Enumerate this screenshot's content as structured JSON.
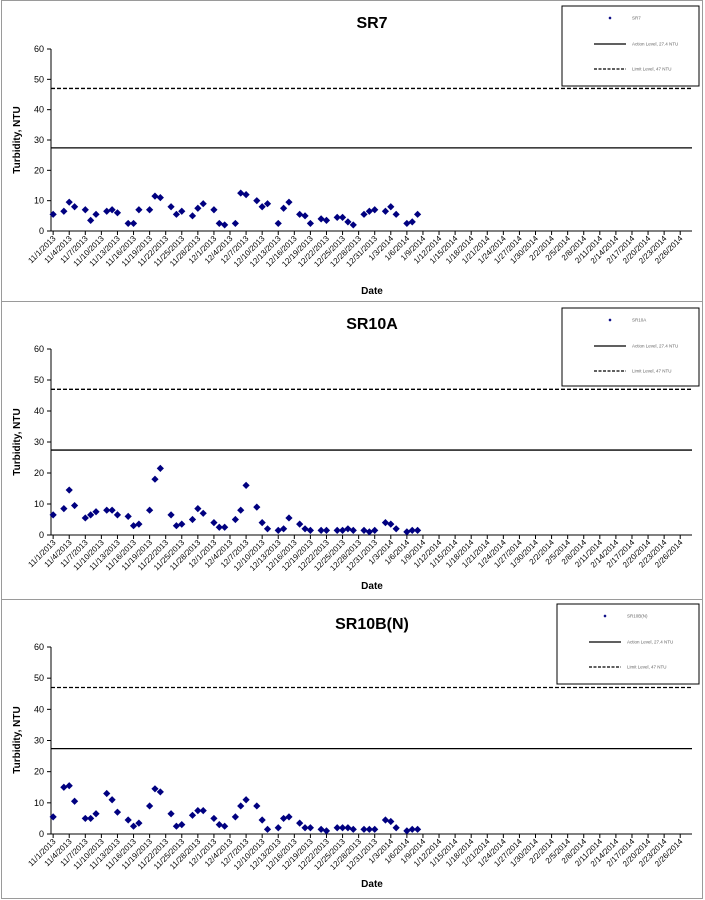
{
  "chart_data": [
    {
      "type": "scatter",
      "title": "SR7",
      "xlabel": "Date",
      "ylabel": "Turbidity, NTU",
      "ylim": [
        0,
        60
      ],
      "yticks": [
        0,
        10,
        20,
        30,
        40,
        50,
        60
      ],
      "grid": false,
      "legend_position": "top-right",
      "legend": {
        "marker_label": "SR7",
        "solid_label": "Action Level, 27.4 NTU",
        "dashed_label": "Limit Level, 47 NTU"
      },
      "reference_lines": [
        {
          "y": 27.4,
          "style": "solid"
        },
        {
          "y": 47,
          "style": "dashed"
        }
      ],
      "xticks": [
        "11/1/2013",
        "11/4/2013",
        "11/7/2013",
        "11/10/2013",
        "11/13/2013",
        "11/16/2013",
        "11/19/2013",
        "11/22/2013",
        "11/25/2013",
        "11/28/2013",
        "12/1/2013",
        "12/4/2013",
        "12/7/2013",
        "12/10/2013",
        "12/13/2013",
        "12/16/2013",
        "12/19/2013",
        "12/22/2013",
        "12/25/2013",
        "12/28/2013",
        "12/31/2013",
        "1/3/2014",
        "1/6/2014",
        "1/9/2014",
        "1/12/2014",
        "1/15/2014",
        "1/18/2014",
        "1/21/2014",
        "1/24/2014",
        "1/27/2014",
        "1/30/2014",
        "2/2/2014",
        "2/5/2014",
        "2/8/2014",
        "2/11/2014",
        "2/14/2014",
        "2/17/2014",
        "2/20/2014",
        "2/23/2014",
        "2/26/2014"
      ],
      "points": [
        [
          "11/1/2013",
          5.5
        ],
        [
          "11/3/2013",
          6.5
        ],
        [
          "11/4/2013",
          9.5
        ],
        [
          "11/5/2013",
          8
        ],
        [
          "11/7/2013",
          7
        ],
        [
          "11/8/2013",
          3.5
        ],
        [
          "11/9/2013",
          5.5
        ],
        [
          "11/11/2013",
          6.5
        ],
        [
          "11/12/2013",
          7
        ],
        [
          "11/13/2013",
          6
        ],
        [
          "11/15/2013",
          2.5
        ],
        [
          "11/16/2013",
          2.5
        ],
        [
          "11/17/2013",
          7
        ],
        [
          "11/19/2013",
          7
        ],
        [
          "11/20/2013",
          11.5
        ],
        [
          "11/21/2013",
          11
        ],
        [
          "11/23/2013",
          8
        ],
        [
          "11/24/2013",
          5.5
        ],
        [
          "11/25/2013",
          6.5
        ],
        [
          "11/27/2013",
          5
        ],
        [
          "11/28/2013",
          7.5
        ],
        [
          "11/29/2013",
          9
        ],
        [
          "12/1/2013",
          7
        ],
        [
          "12/2/2013",
          2.5
        ],
        [
          "12/3/2013",
          2
        ],
        [
          "12/5/2013",
          2.5
        ],
        [
          "12/6/2013",
          12.5
        ],
        [
          "12/7/2013",
          12
        ],
        [
          "12/9/2013",
          10
        ],
        [
          "12/10/2013",
          8
        ],
        [
          "12/11/2013",
          9
        ],
        [
          "12/13/2013",
          2.5
        ],
        [
          "12/14/2013",
          7.5
        ],
        [
          "12/15/2013",
          9.5
        ],
        [
          "12/17/2013",
          5.5
        ],
        [
          "12/18/2013",
          5
        ],
        [
          "12/19/2013",
          2.5
        ],
        [
          "12/21/2013",
          4
        ],
        [
          "12/22/2013",
          3.5
        ],
        [
          "12/24/2013",
          4.5
        ],
        [
          "12/25/2013",
          4.5
        ],
        [
          "12/26/2013",
          3
        ],
        [
          "12/27/2013",
          2
        ],
        [
          "12/29/2013",
          5.5
        ],
        [
          "12/30/2013",
          6.5
        ],
        [
          "12/31/2013",
          7
        ],
        [
          "1/2/2014",
          6.5
        ],
        [
          "1/3/2014",
          8
        ],
        [
          "1/4/2014",
          5.5
        ],
        [
          "1/6/2014",
          2.5
        ],
        [
          "1/7/2014",
          3
        ],
        [
          "1/8/2014",
          5.5
        ]
      ]
    },
    {
      "type": "scatter",
      "title": "SR10A",
      "xlabel": "Date",
      "ylabel": "Turbidity, NTU",
      "ylim": [
        0,
        60
      ],
      "yticks": [
        0,
        10,
        20,
        30,
        40,
        50,
        60
      ],
      "grid": false,
      "legend_position": "top-right",
      "legend": {
        "marker_label": "SR10A",
        "solid_label": "Action Level, 27.4 NTU",
        "dashed_label": "Limit Level, 47 NTU"
      },
      "reference_lines": [
        {
          "y": 27.4,
          "style": "solid"
        },
        {
          "y": 47,
          "style": "dashed"
        }
      ],
      "xticks": [
        "11/1/2013",
        "11/4/2013",
        "11/7/2013",
        "11/10/2013",
        "11/13/2013",
        "11/16/2013",
        "11/19/2013",
        "11/22/2013",
        "11/25/2013",
        "11/28/2013",
        "12/1/2013",
        "12/4/2013",
        "12/7/2013",
        "12/10/2013",
        "12/13/2013",
        "12/16/2013",
        "12/19/2013",
        "12/22/2013",
        "12/25/2013",
        "12/28/2013",
        "12/31/2013",
        "1/3/2014",
        "1/6/2014",
        "1/9/2014",
        "1/12/2014",
        "1/15/2014",
        "1/18/2014",
        "1/21/2014",
        "1/24/2014",
        "1/27/2014",
        "1/30/2014",
        "2/2/2014",
        "2/5/2014",
        "2/8/2014",
        "2/11/2014",
        "2/14/2014",
        "2/17/2014",
        "2/20/2014",
        "2/23/2014",
        "2/26/2014"
      ],
      "points": [
        [
          "11/1/2013",
          6.5
        ],
        [
          "11/3/2013",
          8.5
        ],
        [
          "11/4/2013",
          14.5
        ],
        [
          "11/5/2013",
          9.5
        ],
        [
          "11/7/2013",
          5.5
        ],
        [
          "11/8/2013",
          6.5
        ],
        [
          "11/9/2013",
          7.5
        ],
        [
          "11/11/2013",
          8
        ],
        [
          "11/12/2013",
          8
        ],
        [
          "11/13/2013",
          6.5
        ],
        [
          "11/15/2013",
          6
        ],
        [
          "11/16/2013",
          3
        ],
        [
          "11/17/2013",
          3.5
        ],
        [
          "11/19/2013",
          8
        ],
        [
          "11/20/2013",
          18
        ],
        [
          "11/21/2013",
          21.5
        ],
        [
          "11/23/2013",
          6.5
        ],
        [
          "11/24/2013",
          3
        ],
        [
          "11/25/2013",
          3.5
        ],
        [
          "11/27/2013",
          5
        ],
        [
          "11/28/2013",
          8.5
        ],
        [
          "11/29/2013",
          7
        ],
        [
          "12/1/2013",
          4
        ],
        [
          "12/2/2013",
          2.5
        ],
        [
          "12/3/2013",
          2.5
        ],
        [
          "12/5/2013",
          5
        ],
        [
          "12/6/2013",
          8
        ],
        [
          "12/7/2013",
          16
        ],
        [
          "12/9/2013",
          9
        ],
        [
          "12/10/2013",
          4
        ],
        [
          "12/11/2013",
          2
        ],
        [
          "12/13/2013",
          1.5
        ],
        [
          "12/14/2013",
          2
        ],
        [
          "12/15/2013",
          5.5
        ],
        [
          "12/17/2013",
          3.5
        ],
        [
          "12/18/2013",
          2
        ],
        [
          "12/19/2013",
          1.5
        ],
        [
          "12/21/2013",
          1.5
        ],
        [
          "12/22/2013",
          1.5
        ],
        [
          "12/24/2013",
          1.5
        ],
        [
          "12/25/2013",
          1.5
        ],
        [
          "12/26/2013",
          2
        ],
        [
          "12/27/2013",
          1.5
        ],
        [
          "12/29/2013",
          1.5
        ],
        [
          "12/30/2013",
          1
        ],
        [
          "12/31/2013",
          1.5
        ],
        [
          "1/2/2014",
          4
        ],
        [
          "1/3/2014",
          3.5
        ],
        [
          "1/4/2014",
          2
        ],
        [
          "1/6/2014",
          1
        ],
        [
          "1/7/2014",
          1.5
        ],
        [
          "1/8/2014",
          1.5
        ]
      ]
    },
    {
      "type": "scatter",
      "title": "SR10B(N)",
      "xlabel": "Date",
      "ylabel": "Turbidity, NTU",
      "ylim": [
        0,
        60
      ],
      "yticks": [
        0,
        10,
        20,
        30,
        40,
        50,
        60
      ],
      "grid": false,
      "legend_position": "top-right",
      "legend": {
        "marker_label": "SR10B(N)",
        "solid_label": "Action Level, 27.4 NTU",
        "dashed_label": "Limit Level, 47 NTU"
      },
      "reference_lines": [
        {
          "y": 27.4,
          "style": "solid"
        },
        {
          "y": 47,
          "style": "dashed"
        }
      ],
      "xticks": [
        "11/1/2013",
        "11/4/2013",
        "11/7/2013",
        "11/10/2013",
        "11/13/2013",
        "11/16/2013",
        "11/19/2013",
        "11/22/2013",
        "11/25/2013",
        "11/28/2013",
        "12/1/2013",
        "12/4/2013",
        "12/7/2013",
        "12/10/2013",
        "12/13/2013",
        "12/16/2013",
        "12/19/2013",
        "12/22/2013",
        "12/25/2013",
        "12/28/2013",
        "12/31/2013",
        "1/3/2014",
        "1/6/2014",
        "1/9/2014",
        "1/12/2014",
        "1/15/2014",
        "1/18/2014",
        "1/21/2014",
        "1/24/2014",
        "1/27/2014",
        "1/30/2014",
        "2/2/2014",
        "2/5/2014",
        "2/8/2014",
        "2/11/2014",
        "2/14/2014",
        "2/17/2014",
        "2/20/2014",
        "2/23/2014",
        "2/26/2014"
      ],
      "points": [
        [
          "11/1/2013",
          5.5
        ],
        [
          "11/3/2013",
          15
        ],
        [
          "11/4/2013",
          15.5
        ],
        [
          "11/5/2013",
          10.5
        ],
        [
          "11/7/2013",
          5
        ],
        [
          "11/8/2013",
          5
        ],
        [
          "11/9/2013",
          6.5
        ],
        [
          "11/11/2013",
          13
        ],
        [
          "11/12/2013",
          11
        ],
        [
          "11/13/2013",
          7
        ],
        [
          "11/15/2013",
          4.5
        ],
        [
          "11/16/2013",
          2.5
        ],
        [
          "11/17/2013",
          3.5
        ],
        [
          "11/19/2013",
          9
        ],
        [
          "11/20/2013",
          14.5
        ],
        [
          "11/21/2013",
          13.5
        ],
        [
          "11/23/2013",
          6.5
        ],
        [
          "11/24/2013",
          2.5
        ],
        [
          "11/25/2013",
          3
        ],
        [
          "11/27/2013",
          6
        ],
        [
          "11/28/2013",
          7.5
        ],
        [
          "11/29/2013",
          7.5
        ],
        [
          "12/1/2013",
          5
        ],
        [
          "12/2/2013",
          3
        ],
        [
          "12/3/2013",
          2.5
        ],
        [
          "12/5/2013",
          5.5
        ],
        [
          "12/6/2013",
          9
        ],
        [
          "12/7/2013",
          11
        ],
        [
          "12/9/2013",
          9
        ],
        [
          "12/10/2013",
          4.5
        ],
        [
          "12/11/2013",
          1.5
        ],
        [
          "12/13/2013",
          2
        ],
        [
          "12/14/2013",
          5
        ],
        [
          "12/15/2013",
          5.5
        ],
        [
          "12/17/2013",
          3.5
        ],
        [
          "12/18/2013",
          2
        ],
        [
          "12/19/2013",
          2
        ],
        [
          "12/21/2013",
          1.5
        ],
        [
          "12/22/2013",
          1
        ],
        [
          "12/24/2013",
          2
        ],
        [
          "12/25/2013",
          2
        ],
        [
          "12/26/2013",
          2
        ],
        [
          "12/27/2013",
          1.5
        ],
        [
          "12/29/2013",
          1.5
        ],
        [
          "12/30/2013",
          1.5
        ],
        [
          "12/31/2013",
          1.5
        ],
        [
          "1/2/2014",
          4.5
        ],
        [
          "1/3/2014",
          4
        ],
        [
          "1/4/2014",
          2
        ],
        [
          "1/6/2014",
          1
        ],
        [
          "1/7/2014",
          1.5
        ],
        [
          "1/8/2014",
          1.5
        ]
      ]
    }
  ],
  "colors": {
    "marker": "#000080",
    "line": "#000000"
  }
}
